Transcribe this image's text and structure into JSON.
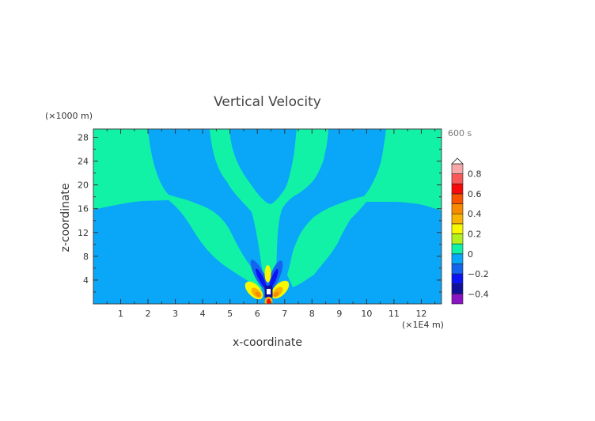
{
  "chart_data": {
    "type": "heatmap",
    "subtype": "filled-contour",
    "title": "Vertical Velocity",
    "time_label": "600 s",
    "xlabel": "x-coordinate",
    "ylabel": "z-coordinate",
    "x_unit_label": "(×1E4 m)",
    "y_unit_label": "(×1000 m)",
    "xlim": [
      0,
      12.74
    ],
    "ylim": [
      0,
      29.4
    ],
    "xticks": [
      1,
      2,
      3,
      4,
      5,
      6,
      7,
      8,
      9,
      10,
      11,
      12
    ],
    "yticks": [
      4,
      8,
      12,
      16,
      20,
      24,
      28
    ],
    "x_minor_step": 0.5,
    "y_minor_step": 2,
    "colorbar": {
      "levels": [
        -0.5,
        -0.4,
        -0.3,
        -0.2,
        -0.1,
        0,
        0.1,
        0.2,
        0.3,
        0.4,
        0.5,
        0.6,
        0.7,
        0.8,
        0.9
      ],
      "colors": [
        "#8a14c4",
        "#10109c",
        "#0c14f4",
        "#1464f0",
        "#0aa6f8",
        "#12f2a6",
        "#b2f01e",
        "#f8f800",
        "#f8b400",
        "#f88a00",
        "#f85400",
        "#f80a0a",
        "#f85858",
        "#f8a8a8"
      ],
      "tick_labels": [
        "0.8",
        "0.6",
        "0.4",
        "0.2",
        "0",
        "−0.2",
        "−0.4"
      ],
      "tick_values": [
        0.8,
        0.6,
        0.4,
        0.2,
        0,
        -0.2,
        -0.4
      ],
      "extend": "max"
    },
    "features": [
      {
        "name": "background",
        "value_range": [
          -0.1,
          0
        ]
      },
      {
        "name": "upper-left-and-left-band",
        "value_range": [
          0,
          0.1
        ]
      },
      {
        "name": "central-U-and-trunk",
        "value_range": [
          0,
          0.1
        ]
      },
      {
        "name": "upper-right-and-right-band",
        "value_range": [
          0,
          0.1
        ]
      },
      {
        "name": "downdraft-lobes",
        "value_range": [
          -0.4,
          -0.1
        ]
      },
      {
        "name": "updraft-lobes",
        "value_range": [
          0.1,
          0.5
        ]
      },
      {
        "name": "surface-core",
        "value_range": [
          0.5,
          0.8
        ]
      }
    ]
  }
}
